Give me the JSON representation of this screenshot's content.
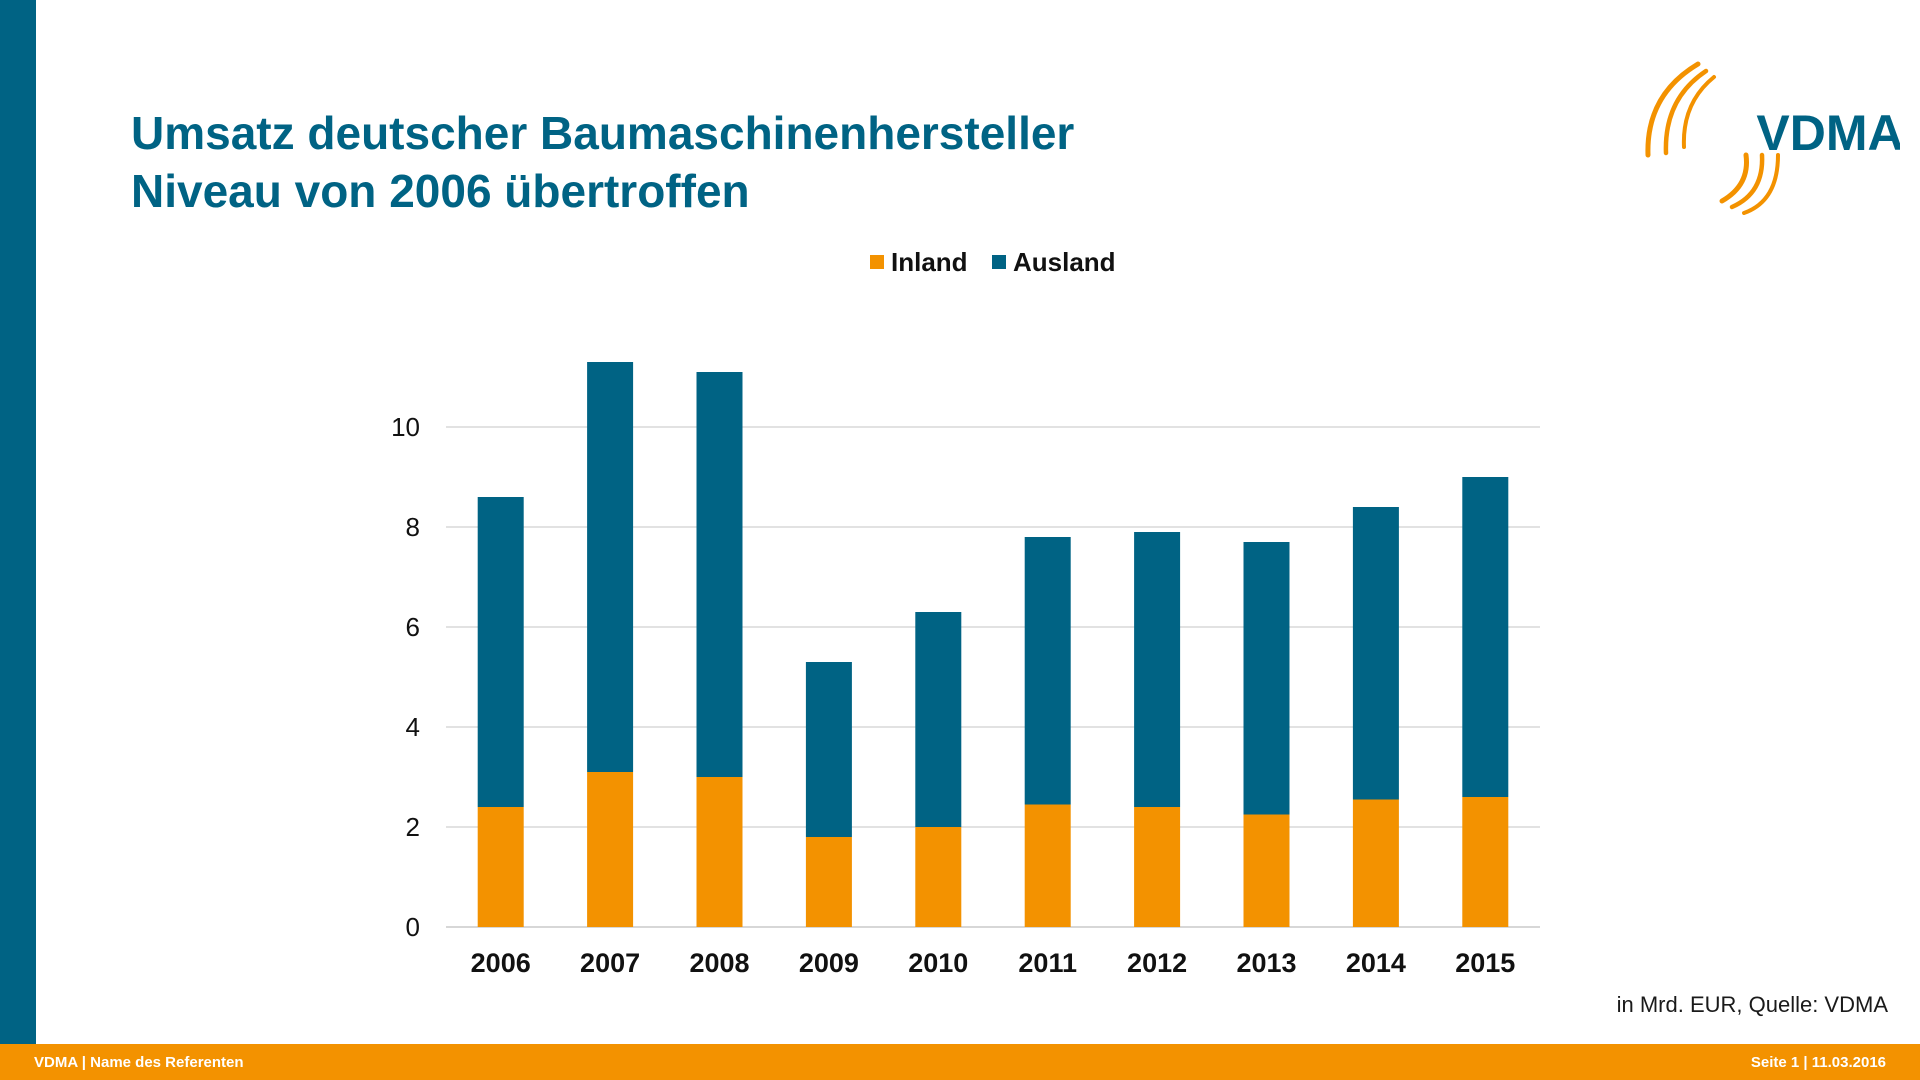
{
  "title": {
    "line1": "Umsatz deutscher Baumaschinenhersteller",
    "line2": "Niveau von 2006 übertroffen"
  },
  "logo": {
    "text": "VDMA",
    "text_color": "#006384",
    "arc_color": "#f39200"
  },
  "chart_data": {
    "type": "bar",
    "stacked": true,
    "categories": [
      "2006",
      "2007",
      "2008",
      "2009",
      "2010",
      "2011",
      "2012",
      "2013",
      "2014",
      "2015"
    ],
    "series": [
      {
        "name": "Inland",
        "color": "#f39200",
        "values": [
          2.4,
          3.1,
          3.0,
          1.8,
          2.0,
          2.45,
          2.4,
          2.25,
          2.55,
          2.6
        ]
      },
      {
        "name": "Ausland",
        "color": "#006384",
        "values": [
          6.2,
          8.2,
          8.1,
          3.5,
          4.3,
          5.35,
          5.5,
          5.45,
          5.85,
          6.4
        ]
      }
    ],
    "y_ticks": [
      "0",
      "2",
      "4",
      "6",
      "8",
      "10"
    ],
    "ylim": [
      0,
      12
    ],
    "grid": true,
    "legend_position": "top-center",
    "xlabel": "",
    "ylabel": ""
  },
  "source": "in Mrd. EUR, Quelle: VDMA",
  "footer": {
    "left": "VDMA | Name des Referenten",
    "right": "Seite 1 | 11.03.2016"
  },
  "colors": {
    "primary": "#006384",
    "accent": "#f39200"
  }
}
